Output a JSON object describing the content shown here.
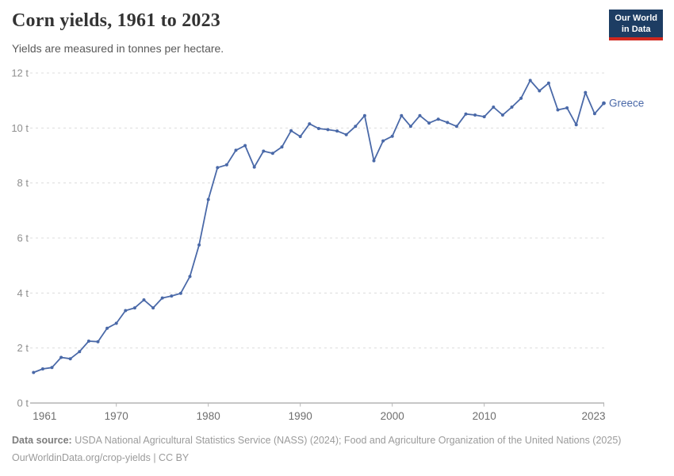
{
  "header": {
    "title": "Corn yields, 1961 to 2023",
    "subtitle": "Yields are measured in tonnes per hectare.",
    "logo": {
      "line1": "Our World",
      "line2": "in Data",
      "bg_color": "#1d3d63",
      "accent_color": "#d0281e"
    }
  },
  "chart_data": {
    "type": "line",
    "title": "Corn yields, 1961 to 2023",
    "unit": "t",
    "xlim": [
      1961,
      2023
    ],
    "ylim": [
      0,
      12
    ],
    "grid": true,
    "legend_position": "end-of-line",
    "x_ticks": [
      1961,
      1970,
      1980,
      1990,
      2000,
      2010,
      2023
    ],
    "y_ticks": [
      0,
      2,
      4,
      6,
      8,
      10,
      12
    ],
    "series": [
      {
        "name": "Greece",
        "color": "#4a69a8",
        "x": [
          1961,
          1962,
          1963,
          1964,
          1965,
          1966,
          1967,
          1968,
          1969,
          1970,
          1971,
          1972,
          1973,
          1974,
          1975,
          1976,
          1977,
          1978,
          1979,
          1980,
          1981,
          1982,
          1983,
          1984,
          1985,
          1986,
          1987,
          1988,
          1989,
          1990,
          1991,
          1992,
          1993,
          1994,
          1995,
          1996,
          1997,
          1998,
          1999,
          2000,
          2001,
          2002,
          2003,
          2004,
          2005,
          2006,
          2007,
          2008,
          2009,
          2010,
          2011,
          2012,
          2013,
          2014,
          2015,
          2016,
          2017,
          2018,
          2019,
          2020,
          2021,
          2022,
          2023
        ],
        "values": [
          1.11,
          1.24,
          1.29,
          1.66,
          1.61,
          1.87,
          2.25,
          2.23,
          2.72,
          2.9,
          3.36,
          3.46,
          3.75,
          3.46,
          3.82,
          3.89,
          3.99,
          4.6,
          5.75,
          7.4,
          8.56,
          8.66,
          9.19,
          9.36,
          8.58,
          9.16,
          9.08,
          9.31,
          9.9,
          9.69,
          10.15,
          9.98,
          9.94,
          9.89,
          9.76,
          10.06,
          10.45,
          8.81,
          9.53,
          9.7,
          10.45,
          10.06,
          10.45,
          10.18,
          10.32,
          10.2,
          10.06,
          10.51,
          10.47,
          10.41,
          10.76,
          10.47,
          10.76,
          11.08,
          11.73,
          11.35,
          11.63,
          10.66,
          10.73,
          10.12,
          11.29,
          10.52,
          10.9
        ]
      }
    ]
  },
  "footer": {
    "source_label": "Data source:",
    "source_text": "USDA National Agricultural Statistics Service (NASS) (2024); Food and Agriculture Organization of the United Nations (2025)",
    "link": "OurWorldinData.org/crop-yields",
    "separator": " | ",
    "license": "CC BY"
  }
}
